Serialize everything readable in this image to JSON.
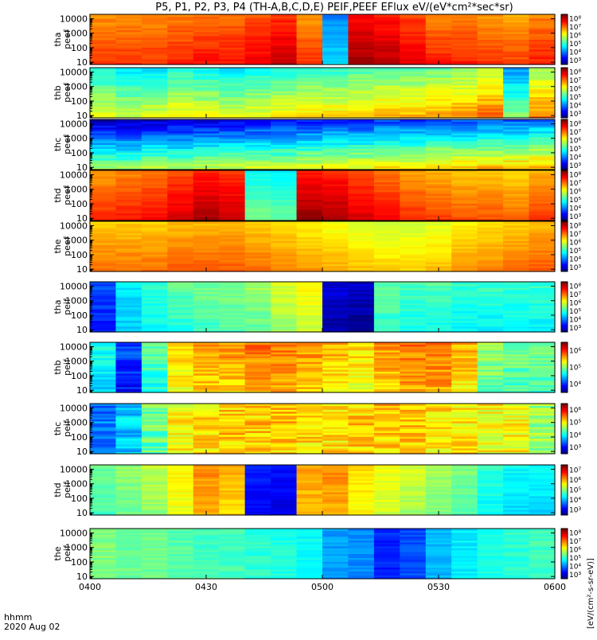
{
  "title": "P5, P1, P2, P3, P4 (TH-A,B,C,D,E) PEIF,PEEF EFlux eV/(eV*cm²*sec*sr)",
  "x_axis": {
    "label_line1": "hhmm",
    "label_line2": "2020 Aug 02",
    "ticks": [
      "0400",
      "0430",
      "0500",
      "0530",
      "0600"
    ]
  },
  "colorbar_title": "[eV/(cm²-s-sr-eV)]",
  "chart_data": [
    {
      "type": "heatmap",
      "label1": "tha",
      "label2": "peef",
      "ylim": [
        7,
        20000
      ],
      "yscale": "log",
      "yticks": [
        "10",
        "100",
        "1000",
        "10000"
      ],
      "colorbar": [
        "10³",
        "10⁴",
        "10⁵",
        "10⁶",
        "10⁷",
        "10⁸"
      ],
      "cb_range": [
        3,
        8
      ],
      "x_cols": [
        "0400",
        "0407",
        "0413",
        "0420",
        "0427",
        "0433",
        "0440",
        "0447",
        "0453",
        "0500",
        "0507",
        "0513",
        "0520",
        "0527",
        "0533",
        "0540",
        "0547",
        "0553"
      ],
      "column_level": [
        6.9,
        6.9,
        6.9,
        7.0,
        7.1,
        7.1,
        7.2,
        7.4,
        6.9,
        4.5,
        7.6,
        7.5,
        7.3,
        7.0,
        7.0,
        6.9,
        6.8,
        7.0
      ],
      "gradient": -0.5,
      "texture": 0.25
    },
    {
      "type": "heatmap",
      "label1": "thb",
      "label2": "peef",
      "ylim": [
        7,
        20000
      ],
      "yscale": "log",
      "yticks": [
        "10",
        "100",
        "1000",
        "10000"
      ],
      "colorbar": [
        "10³",
        "10⁴",
        "10⁵",
        "10⁶",
        "10⁷",
        "10⁸"
      ],
      "cb_range": [
        3,
        8
      ],
      "x_cols": [
        "0400",
        "0407",
        "0413",
        "0420",
        "0427",
        "0433",
        "0440",
        "0447",
        "0453",
        "0500",
        "0507",
        "0513",
        "0520",
        "0527",
        "0533",
        "0540",
        "0547",
        "0553"
      ],
      "column_level": [
        5.5,
        5.3,
        5.4,
        5.6,
        5.5,
        5.4,
        5.5,
        5.6,
        5.7,
        5.7,
        5.8,
        5.9,
        5.9,
        6.0,
        6.1,
        6.3,
        5.0,
        6.2
      ],
      "gradient": -1.2,
      "texture": 0.4
    },
    {
      "type": "heatmap",
      "label1": "thc",
      "label2": "peef",
      "ylim": [
        7,
        20000
      ],
      "yscale": "log",
      "yticks": [
        "10",
        "100",
        "1000",
        "10000"
      ],
      "colorbar": [
        "10³",
        "10⁴",
        "10⁵",
        "10⁶",
        "10⁷",
        "10⁸"
      ],
      "cb_range": [
        3,
        8
      ],
      "x_cols": [
        "0400",
        "0407",
        "0413",
        "0420",
        "0427",
        "0433",
        "0440",
        "0447",
        "0453",
        "0500",
        "0507",
        "0513",
        "0520",
        "0527",
        "0533",
        "0540",
        "0547",
        "0553"
      ],
      "column_level": [
        4.5,
        4.5,
        4.6,
        4.6,
        4.7,
        4.7,
        4.8,
        4.8,
        4.9,
        5.0,
        5.0,
        5.1,
        5.1,
        5.2,
        5.2,
        5.3,
        5.3,
        5.4
      ],
      "gradient": -2.4,
      "texture": 0.5
    },
    {
      "type": "heatmap",
      "label1": "thd",
      "label2": "peef",
      "ylim": [
        7,
        20000
      ],
      "yscale": "log",
      "yticks": [
        "10",
        "100",
        "1000",
        "10000"
      ],
      "colorbar": [
        "10³",
        "10⁴",
        "10⁵",
        "10⁶",
        "10⁷",
        "10⁸"
      ],
      "cb_range": [
        3,
        8
      ],
      "x_cols": [
        "0400",
        "0407",
        "0413",
        "0420",
        "0427",
        "0433",
        "0440",
        "0447",
        "0453",
        "0500",
        "0507",
        "0513",
        "0520",
        "0527",
        "0533",
        "0540",
        "0547",
        "0553"
      ],
      "column_level": [
        6.9,
        7.0,
        7.1,
        7.3,
        7.5,
        7.4,
        5.2,
        5.1,
        7.6,
        7.5,
        7.3,
        7.1,
        6.9,
        6.8,
        6.7,
        6.7,
        6.6,
        6.8
      ],
      "gradient": -0.6,
      "texture": 0.2
    },
    {
      "type": "heatmap",
      "label1": "the",
      "label2": "peef",
      "ylim": [
        7,
        20000
      ],
      "yscale": "log",
      "yticks": [
        "10",
        "100",
        "1000",
        "10000"
      ],
      "colorbar": [
        "10³",
        "10⁴",
        "10⁵",
        "10⁶",
        "10⁷",
        "10⁸"
      ],
      "cb_range": [
        3,
        8
      ],
      "x_cols": [
        "0400",
        "0407",
        "0413",
        "0420",
        "0427",
        "0433",
        "0440",
        "0447",
        "0453",
        "0500",
        "0507",
        "0513",
        "0520",
        "0527",
        "0533",
        "0540",
        "0547",
        "0553"
      ],
      "column_level": [
        6.6,
        6.6,
        6.6,
        6.7,
        6.7,
        6.7,
        6.6,
        6.5,
        6.4,
        6.3,
        6.2,
        6.1,
        6.1,
        6.2,
        6.4,
        6.5,
        6.6,
        6.7
      ],
      "gradient": -0.5,
      "texture": 0.2
    },
    {
      "type": "heatmap",
      "label1": "tha",
      "label2": "peif",
      "ylim": [
        7,
        20000
      ],
      "yscale": "log",
      "yticks": [
        "10",
        "100",
        "1000",
        "10000"
      ],
      "colorbar": [
        "10³",
        "10⁴",
        "10⁵",
        "10⁶",
        "10⁷",
        "10⁸"
      ],
      "cb_range": [
        3,
        8
      ],
      "x_cols": [
        "0400",
        "0407",
        "0413",
        "0420",
        "0427",
        "0433",
        "0440",
        "0447",
        "0453",
        "0500",
        "0507",
        "0513",
        "0520",
        "0527",
        "0533",
        "0540",
        "0547",
        "0553"
      ],
      "column_level": [
        3.9,
        4.7,
        5.0,
        5.2,
        5.3,
        5.4,
        5.5,
        5.8,
        6.0,
        3.3,
        3.2,
        5.2,
        5.1,
        5.1,
        5.0,
        5.0,
        5.0,
        5.0
      ],
      "gradient": 0.3,
      "texture": 0.35
    },
    {
      "type": "heatmap",
      "label1": "thb",
      "label2": "peif",
      "ylim": [
        7,
        20000
      ],
      "yscale": "log",
      "yticks": [
        "10",
        "100",
        "1000",
        "10000"
      ],
      "colorbar": [
        "10⁴",
        "10⁵",
        "10⁶"
      ],
      "cb_range": [
        3.5,
        6.5
      ],
      "x_cols": [
        "0400",
        "0407",
        "0413",
        "0420",
        "0427",
        "0433",
        "0440",
        "0447",
        "0453",
        "0500",
        "0507",
        "0513",
        "0520",
        "0527",
        "0533",
        "0540",
        "0547",
        "0553"
      ],
      "column_level": [
        4.6,
        4.0,
        4.8,
        5.4,
        5.6,
        5.6,
        5.7,
        5.7,
        5.6,
        5.5,
        5.4,
        5.6,
        5.7,
        5.7,
        5.5,
        5.0,
        4.9,
        4.9
      ],
      "gradient": 0.2,
      "texture": 0.35
    },
    {
      "type": "heatmap",
      "label1": "thc",
      "label2": "peif",
      "ylim": [
        7,
        20000
      ],
      "yscale": "log",
      "yticks": [
        "10",
        "100",
        "1000",
        "10000"
      ],
      "colorbar": [
        "10³",
        "10⁴",
        "10⁵",
        "10⁶"
      ],
      "cb_range": [
        2.5,
        6.5
      ],
      "x_cols": [
        "0400",
        "0407",
        "0413",
        "0420",
        "0427",
        "0433",
        "0440",
        "0447",
        "0453",
        "0500",
        "0507",
        "0513",
        "0520",
        "0527",
        "0533",
        "0540",
        "0547",
        "0553"
      ],
      "column_level": [
        3.5,
        3.8,
        4.4,
        5.0,
        5.1,
        5.2,
        5.2,
        5.2,
        5.1,
        5.1,
        5.2,
        5.2,
        5.2,
        5.1,
        5.1,
        5.0,
        5.0,
        4.6
      ],
      "gradient": 0.0,
      "texture": 0.6
    },
    {
      "type": "heatmap",
      "label1": "thd",
      "label2": "peif",
      "ylim": [
        7,
        20000
      ],
      "yscale": "log",
      "yticks": [
        "10",
        "100",
        "1000",
        "10000"
      ],
      "colorbar": [
        "10³",
        "10⁴",
        "10⁵",
        "10⁶",
        "10⁷"
      ],
      "cb_range": [
        2.5,
        7.5
      ],
      "x_cols": [
        "0400",
        "0407",
        "0413",
        "0420",
        "0427",
        "0433",
        "0440",
        "0447",
        "0453",
        "0500",
        "0507",
        "0513",
        "0520",
        "0527",
        "0533",
        "0540",
        "0547",
        "0553"
      ],
      "column_level": [
        4.8,
        5.0,
        5.2,
        5.6,
        6.1,
        5.9,
        3.2,
        3.1,
        6.0,
        6.1,
        5.7,
        5.5,
        5.3,
        5.1,
        4.9,
        4.5,
        4.3,
        4.3
      ],
      "gradient": 0.2,
      "texture": 0.3
    },
    {
      "type": "heatmap",
      "label1": "the",
      "label2": "peif",
      "ylim": [
        7,
        20000
      ],
      "yscale": "log",
      "yticks": [
        "10",
        "100",
        "1000",
        "10000"
      ],
      "colorbar": [
        "10³",
        "10⁴",
        "10⁵",
        "10⁶",
        "10⁷",
        "10⁸"
      ],
      "cb_range": [
        3,
        8
      ],
      "x_cols": [
        "0400",
        "0407",
        "0413",
        "0420",
        "0427",
        "0433",
        "0440",
        "0447",
        "0453",
        "0500",
        "0507",
        "0513",
        "0520",
        "0527",
        "0533",
        "0540",
        "0547",
        "0553"
      ],
      "column_level": [
        5.5,
        5.4,
        5.4,
        5.3,
        5.2,
        5.2,
        5.1,
        5.0,
        4.9,
        4.4,
        4.3,
        3.8,
        4.0,
        4.5,
        4.8,
        5.0,
        5.1,
        5.2
      ],
      "gradient": 0.0,
      "texture": 0.3
    }
  ]
}
